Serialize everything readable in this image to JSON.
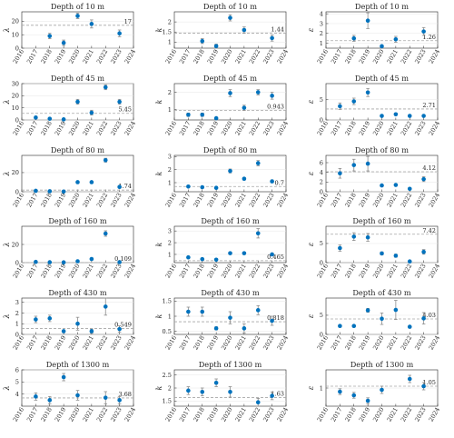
{
  "colors": {
    "marker": "#0072bd",
    "reference_line": "#a6a6a6",
    "error_bar": "#8c8c8c"
  },
  "chart_data": [
    {
      "type": "scatter",
      "title": "Depth of 10 m",
      "ylabel": "λ",
      "x": [
        2017,
        2018,
        2019,
        2020,
        2021,
        2022,
        2023,
        2024
      ],
      "x_ticks": [
        "2016",
        "2017",
        "2018",
        "2019",
        "2020",
        "2021",
        "2022",
        "2023",
        "2024"
      ],
      "y": [
        null,
        9,
        4,
        24,
        18,
        null,
        11,
        null
      ],
      "err": [
        null,
        2,
        2,
        2,
        3,
        null,
        2.5,
        null
      ],
      "ylim": [
        0,
        27
      ],
      "yticks": [
        0,
        10,
        20
      ],
      "y_tick_labels": [
        "0",
        "10",
        "20"
      ],
      "reference": 17,
      "reference_label": "17"
    },
    {
      "type": "scatter",
      "title": "Depth of 10 m",
      "ylabel": "k",
      "x": [
        2017,
        2018,
        2019,
        2020,
        2021,
        2022,
        2023,
        2024
      ],
      "x_ticks": [
        "2016",
        "2017",
        "2018",
        "2019",
        "2020",
        "2021",
        "2022",
        "2023",
        "2024"
      ],
      "y": [
        null,
        1.05,
        0.8,
        2.2,
        1.6,
        null,
        1.2,
        null
      ],
      "err": [
        null,
        0.12,
        0.1,
        0.15,
        0.15,
        null,
        0.15,
        null
      ],
      "ylim": [
        0.7,
        2.5
      ],
      "yticks": [
        1,
        1.5,
        2
      ],
      "y_tick_labels": [
        "1",
        "1.5",
        "2"
      ],
      "reference": 1.44,
      "reference_label": "1.44"
    },
    {
      "type": "scatter",
      "title": "Depth of 10 m",
      "ylabel": "ε",
      "x": [
        2017,
        2018,
        2019,
        2020,
        2021,
        2022,
        2023,
        2024
      ],
      "x_ticks": [
        "2016",
        "2017",
        "2018",
        "2019",
        "2020",
        "2021",
        "2022",
        "2023",
        "2024"
      ],
      "y": [
        null,
        1.5,
        3.3,
        0.7,
        1.4,
        null,
        2.2,
        null
      ],
      "err": [
        null,
        0.3,
        0.8,
        0.1,
        0.3,
        null,
        0.4,
        null
      ],
      "ylim": [
        0.5,
        4.2
      ],
      "yticks": [
        1,
        2,
        3,
        4
      ],
      "y_tick_labels": [
        "1",
        "2",
        "3",
        "4"
      ],
      "reference": 1.26,
      "reference_label": "1.26"
    },
    {
      "type": "scatter",
      "title": "Depth of 45 m",
      "ylabel": "λ",
      "x": [
        2017,
        2018,
        2019,
        2020,
        2021,
        2022,
        2023,
        2024
      ],
      "x_ticks": [
        "2016",
        "2017",
        "2018",
        "2019",
        "2020",
        "2021",
        "2022",
        "2023",
        "2024"
      ],
      "y": [
        2,
        1,
        0.5,
        15,
        6,
        27,
        15,
        null
      ],
      "err": [
        1,
        1,
        0.5,
        2,
        2,
        2,
        2,
        null
      ],
      "ylim": [
        0,
        30
      ],
      "yticks": [
        0,
        10,
        20,
        30
      ],
      "y_tick_labels": [
        "0",
        "10",
        "20",
        "30"
      ],
      "reference": 5.45,
      "reference_label": "5.45"
    },
    {
      "type": "scatter",
      "title": "Depth of 45 m",
      "ylabel": "k",
      "x": [
        2017,
        2018,
        2019,
        2020,
        2021,
        2022,
        2023,
        2024
      ],
      "x_ticks": [
        "2016",
        "2017",
        "2018",
        "2019",
        "2020",
        "2021",
        "2022",
        "2023",
        "2024"
      ],
      "y": [
        0.7,
        0.7,
        0.5,
        1.95,
        1.1,
        2.0,
        1.8,
        null
      ],
      "err": [
        0.1,
        0.1,
        0.05,
        0.2,
        0.15,
        0.15,
        0.2,
        null
      ],
      "ylim": [
        0.4,
        2.5
      ],
      "yticks": [
        1,
        2
      ],
      "y_tick_labels": [
        "1",
        "2"
      ],
      "reference": 0.943,
      "reference_label": "0.943"
    },
    {
      "type": "scatter",
      "title": "Depth of 45 m",
      "ylabel": "ε",
      "x": [
        2017,
        2018,
        2019,
        2020,
        2021,
        2022,
        2023,
        2024
      ],
      "x_ticks": [
        "2016",
        "2017",
        "2018",
        "2019",
        "2020",
        "2021",
        "2022",
        "2023",
        "2024"
      ],
      "y": [
        3.4,
        4.6,
        6.8,
        1,
        1.4,
        1,
        1,
        null
      ],
      "err": [
        0.8,
        0.8,
        1,
        0.2,
        0.3,
        0.2,
        0.2,
        null
      ],
      "ylim": [
        0,
        9
      ],
      "yticks": [
        0,
        5
      ],
      "y_tick_labels": [
        "0",
        "5"
      ],
      "reference": 2.71,
      "reference_label": "2.71"
    },
    {
      "type": "scatter",
      "title": "Depth of 80 m",
      "ylabel": "λ",
      "x": [
        2017,
        2018,
        2019,
        2020,
        2021,
        2022,
        2023,
        2024
      ],
      "x_ticks": [
        "2016",
        "2017",
        "2018",
        "2019",
        "2020",
        "2021",
        "2022",
        "2023",
        "2024"
      ],
      "y": [
        1,
        0.5,
        0.2,
        10,
        10,
        33,
        5,
        null
      ],
      "err": [
        0.5,
        0.3,
        0.2,
        1,
        1,
        2,
        1,
        null
      ],
      "ylim": [
        0,
        38
      ],
      "yticks": [
        0,
        20
      ],
      "y_tick_labels": [
        "0",
        "20"
      ],
      "reference": 1.74,
      "reference_label": "1.74"
    },
    {
      "type": "scatter",
      "title": "Depth of 80 m",
      "ylabel": "k",
      "x": [
        2017,
        2018,
        2019,
        2020,
        2021,
        2022,
        2023,
        2024
      ],
      "x_ticks": [
        "2016",
        "2017",
        "2018",
        "2019",
        "2020",
        "2021",
        "2022",
        "2023",
        "2024"
      ],
      "y": [
        0.7,
        0.65,
        0.6,
        1.9,
        1.3,
        2.5,
        1.1,
        null
      ],
      "err": [
        0.05,
        0.05,
        0.05,
        0.15,
        0.1,
        0.2,
        0.1,
        null
      ],
      "ylim": [
        0.3,
        3.1
      ],
      "yticks": [
        1,
        2,
        3
      ],
      "y_tick_labels": [
        "1",
        "2",
        "3"
      ],
      "reference": 0.7,
      "reference_label": "0.7"
    },
    {
      "type": "scatter",
      "title": "Depth of 80 m",
      "ylabel": "ε",
      "x": [
        2017,
        2018,
        2019,
        2020,
        2021,
        2022,
        2023,
        2024
      ],
      "x_ticks": [
        "2016",
        "2017",
        "2018",
        "2019",
        "2020",
        "2021",
        "2022",
        "2023",
        "2024"
      ],
      "y": [
        3.8,
        5.5,
        5.8,
        1.3,
        1.4,
        0.6,
        2.6,
        null
      ],
      "err": [
        1,
        1.2,
        1.5,
        0.2,
        0.2,
        0.1,
        0.5,
        null
      ],
      "ylim": [
        0,
        7.5
      ],
      "yticks": [
        0,
        2,
        4,
        6
      ],
      "y_tick_labels": [
        "0",
        "2",
        "4",
        "6"
      ],
      "reference": 4.12,
      "reference_label": "4.12"
    },
    {
      "type": "scatter",
      "title": "Depth of 160 m",
      "ylabel": "λ",
      "x": [
        2017,
        2018,
        2019,
        2020,
        2021,
        2022,
        2023,
        2024
      ],
      "x_ticks": [
        "2016",
        "2017",
        "2018",
        "2019",
        "2020",
        "2021",
        "2022",
        "2023",
        "2024"
      ],
      "y": [
        0.8,
        0.4,
        0.3,
        1.5,
        4,
        32,
        0.5,
        null
      ],
      "err": [
        0.3,
        0.2,
        0.2,
        0.5,
        1,
        3,
        0.3,
        null
      ],
      "ylim": [
        0,
        40
      ],
      "yticks": [
        0,
        20
      ],
      "y_tick_labels": [
        "0",
        "20"
      ],
      "reference": 0.109,
      "reference_label": "0.109"
    },
    {
      "type": "scatter",
      "title": "Depth of 160 m",
      "ylabel": "k",
      "x": [
        2017,
        2018,
        2019,
        2020,
        2021,
        2022,
        2023,
        2024
      ],
      "x_ticks": [
        "2016",
        "2017",
        "2018",
        "2019",
        "2020",
        "2021",
        "2022",
        "2023",
        "2024"
      ],
      "y": [
        0.75,
        0.6,
        0.55,
        1.1,
        1.1,
        2.8,
        1.0,
        null
      ],
      "err": [
        0.05,
        0.05,
        0.05,
        0.1,
        0.1,
        0.4,
        0.1,
        null
      ],
      "ylim": [
        0.3,
        3.4
      ],
      "yticks": [
        1,
        2,
        3
      ],
      "y_tick_labels": [
        "1",
        "2",
        "3"
      ],
      "reference": 0.465,
      "reference_label": "0.465"
    },
    {
      "type": "scatter",
      "title": "Depth of 160 m",
      "ylabel": "ε",
      "x": [
        2017,
        2018,
        2019,
        2020,
        2021,
        2022,
        2023,
        2024
      ],
      "x_ticks": [
        "2016",
        "2017",
        "2018",
        "2019",
        "2020",
        "2021",
        "2022",
        "2023",
        "2024"
      ],
      "y": [
        3.8,
        6.8,
        6.6,
        2.4,
        1.8,
        0.3,
        2.8,
        null
      ],
      "err": [
        0.8,
        1,
        1,
        0.4,
        0.4,
        0.1,
        0.6,
        null
      ],
      "ylim": [
        0,
        9.5
      ],
      "yticks": [
        0,
        5
      ],
      "y_tick_labels": [
        "0",
        "5"
      ],
      "reference": 7.42,
      "reference_label": "7.42"
    },
    {
      "type": "scatter",
      "title": "Depth of 430 m",
      "ylabel": "λ",
      "x": [
        2017,
        2018,
        2019,
        2020,
        2021,
        2022,
        2023,
        2024
      ],
      "x_ticks": [
        "2016",
        "2017",
        "2018",
        "2019",
        "2020",
        "2021",
        "2022",
        "2023",
        "2024"
      ],
      "y": [
        1.4,
        1.5,
        0.3,
        1.0,
        0.3,
        2.6,
        0.5,
        null
      ],
      "err": [
        0.3,
        0.3,
        0.1,
        0.6,
        0.2,
        0.8,
        0.3,
        null
      ],
      "ylim": [
        0,
        3.4
      ],
      "yticks": [
        0,
        1,
        2,
        3
      ],
      "y_tick_labels": [
        "0",
        "1",
        "2",
        "3"
      ],
      "reference": 0.549,
      "reference_label": "0.549"
    },
    {
      "type": "scatter",
      "title": "Depth of 430 m",
      "ylabel": "k",
      "x": [
        2017,
        2018,
        2019,
        2020,
        2021,
        2022,
        2023,
        2024
      ],
      "x_ticks": [
        "2016",
        "2017",
        "2018",
        "2019",
        "2020",
        "2021",
        "2022",
        "2023",
        "2024"
      ],
      "y": [
        1.15,
        1.15,
        0.6,
        0.95,
        0.6,
        1.2,
        0.85,
        null
      ],
      "err": [
        0.15,
        0.15,
        0.05,
        0.2,
        0.15,
        0.15,
        0.15,
        null
      ],
      "ylim": [
        0.4,
        1.6
      ],
      "yticks": [
        0.5,
        1,
        1.5
      ],
      "y_tick_labels": [
        "0.5",
        "1",
        "1.5"
      ],
      "reference": 0.818,
      "reference_label": "0.818"
    },
    {
      "type": "scatter",
      "title": "Depth of 430 m",
      "ylabel": "ε",
      "x": [
        2017,
        2018,
        2019,
        2020,
        2021,
        2022,
        2023,
        2024
      ],
      "x_ticks": [
        "2016",
        "2017",
        "2018",
        "2019",
        "2020",
        "2021",
        "2022",
        "2023",
        "2024"
      ],
      "y": [
        2.2,
        2.2,
        6.3,
        4.1,
        6.4,
        2,
        4.2,
        null
      ],
      "err": [
        0.3,
        0.3,
        0.5,
        1.5,
        2.5,
        0.3,
        1.5,
        null
      ],
      "ylim": [
        0,
        9.5
      ],
      "yticks": [
        0,
        5
      ],
      "y_tick_labels": [
        "0",
        "5"
      ],
      "reference": 4.03,
      "reference_label": "4.03"
    },
    {
      "type": "scatter",
      "title": "Depth of 1300 m",
      "ylabel": "λ",
      "x": [
        2017,
        2018,
        2019,
        2020,
        2021,
        2022,
        2023,
        2024
      ],
      "x_ticks": [
        "2016",
        "2017",
        "2018",
        "2019",
        "2020",
        "2021",
        "2022",
        "2023",
        "2024"
      ],
      "y": [
        3.8,
        3.5,
        5.4,
        3.9,
        null,
        3.7,
        3.5,
        null
      ],
      "err": [
        0.3,
        0.3,
        0.3,
        0.4,
        null,
        0.5,
        0.3,
        null
      ],
      "ylim": [
        3,
        6
      ],
      "yticks": [
        4,
        5,
        6
      ],
      "y_tick_labels": [
        "4",
        "5",
        "6"
      ],
      "reference": 3.68,
      "reference_label": "3.68"
    },
    {
      "type": "scatter",
      "title": "Depth of 1300 m",
      "ylabel": "k",
      "x": [
        2017,
        2018,
        2019,
        2020,
        2021,
        2022,
        2023,
        2024
      ],
      "x_ticks": [
        "2016",
        "2017",
        "2018",
        "2019",
        "2020",
        "2021",
        "2022",
        "2023",
        "2024"
      ],
      "y": [
        1.9,
        1.85,
        2.2,
        1.85,
        null,
        1.45,
        1.7,
        null
      ],
      "err": [
        0.15,
        0.15,
        0.15,
        0.2,
        null,
        0.15,
        0.15,
        null
      ],
      "ylim": [
        1.3,
        2.7
      ],
      "yticks": [
        1.5,
        2,
        2.5
      ],
      "y_tick_labels": [
        "1.5",
        "2",
        "2.5"
      ],
      "reference": 1.63,
      "reference_label": "1.63"
    },
    {
      "type": "scatter",
      "title": "Depth of 1300 m",
      "ylabel": "ε",
      "x": [
        2017,
        2018,
        2019,
        2020,
        2021,
        2022,
        2023,
        2024
      ],
      "x_ticks": [
        "2016",
        "2017",
        "2018",
        "2019",
        "2020",
        "2021",
        "2022",
        "2023",
        "2024"
      ],
      "y": [
        0.9,
        0.8,
        0.65,
        0.95,
        null,
        1.25,
        1.05,
        null
      ],
      "err": [
        0.08,
        0.08,
        0.08,
        0.1,
        null,
        0.1,
        0.1,
        null
      ],
      "ylim": [
        0.5,
        1.5
      ],
      "yticks": [
        1
      ],
      "y_tick_labels": [
        "1"
      ],
      "reference": 1.05,
      "reference_label": "1.05"
    }
  ]
}
